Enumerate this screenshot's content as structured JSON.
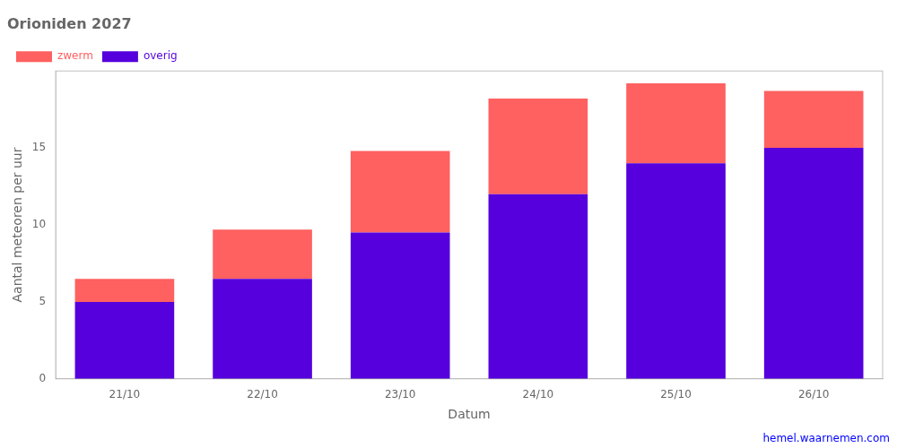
{
  "chart_data": {
    "type": "bar",
    "title": "Orioniden 2027",
    "xlabel": "Datum",
    "ylabel": "Aantal meteoren per uur",
    "categories": [
      "21/10",
      "22/10",
      "23/10",
      "24/10",
      "25/10",
      "26/10"
    ],
    "series": [
      {
        "name": "overig",
        "color": "#5500DD",
        "values": [
          5.0,
          6.5,
          9.5,
          12.0,
          14.0,
          15.0
        ]
      },
      {
        "name": "zwerm",
        "color": "#FF6060",
        "values": [
          1.5,
          3.2,
          5.3,
          6.2,
          5.2,
          3.7
        ]
      }
    ],
    "stacked": true,
    "ylim": [
      0,
      20
    ],
    "yticks": [
      0,
      5,
      10,
      15
    ],
    "grid": false,
    "legend": "upper left",
    "annotations": [
      {
        "text": "hemel.waarnemen.com",
        "color": "#0000FF"
      }
    ]
  }
}
